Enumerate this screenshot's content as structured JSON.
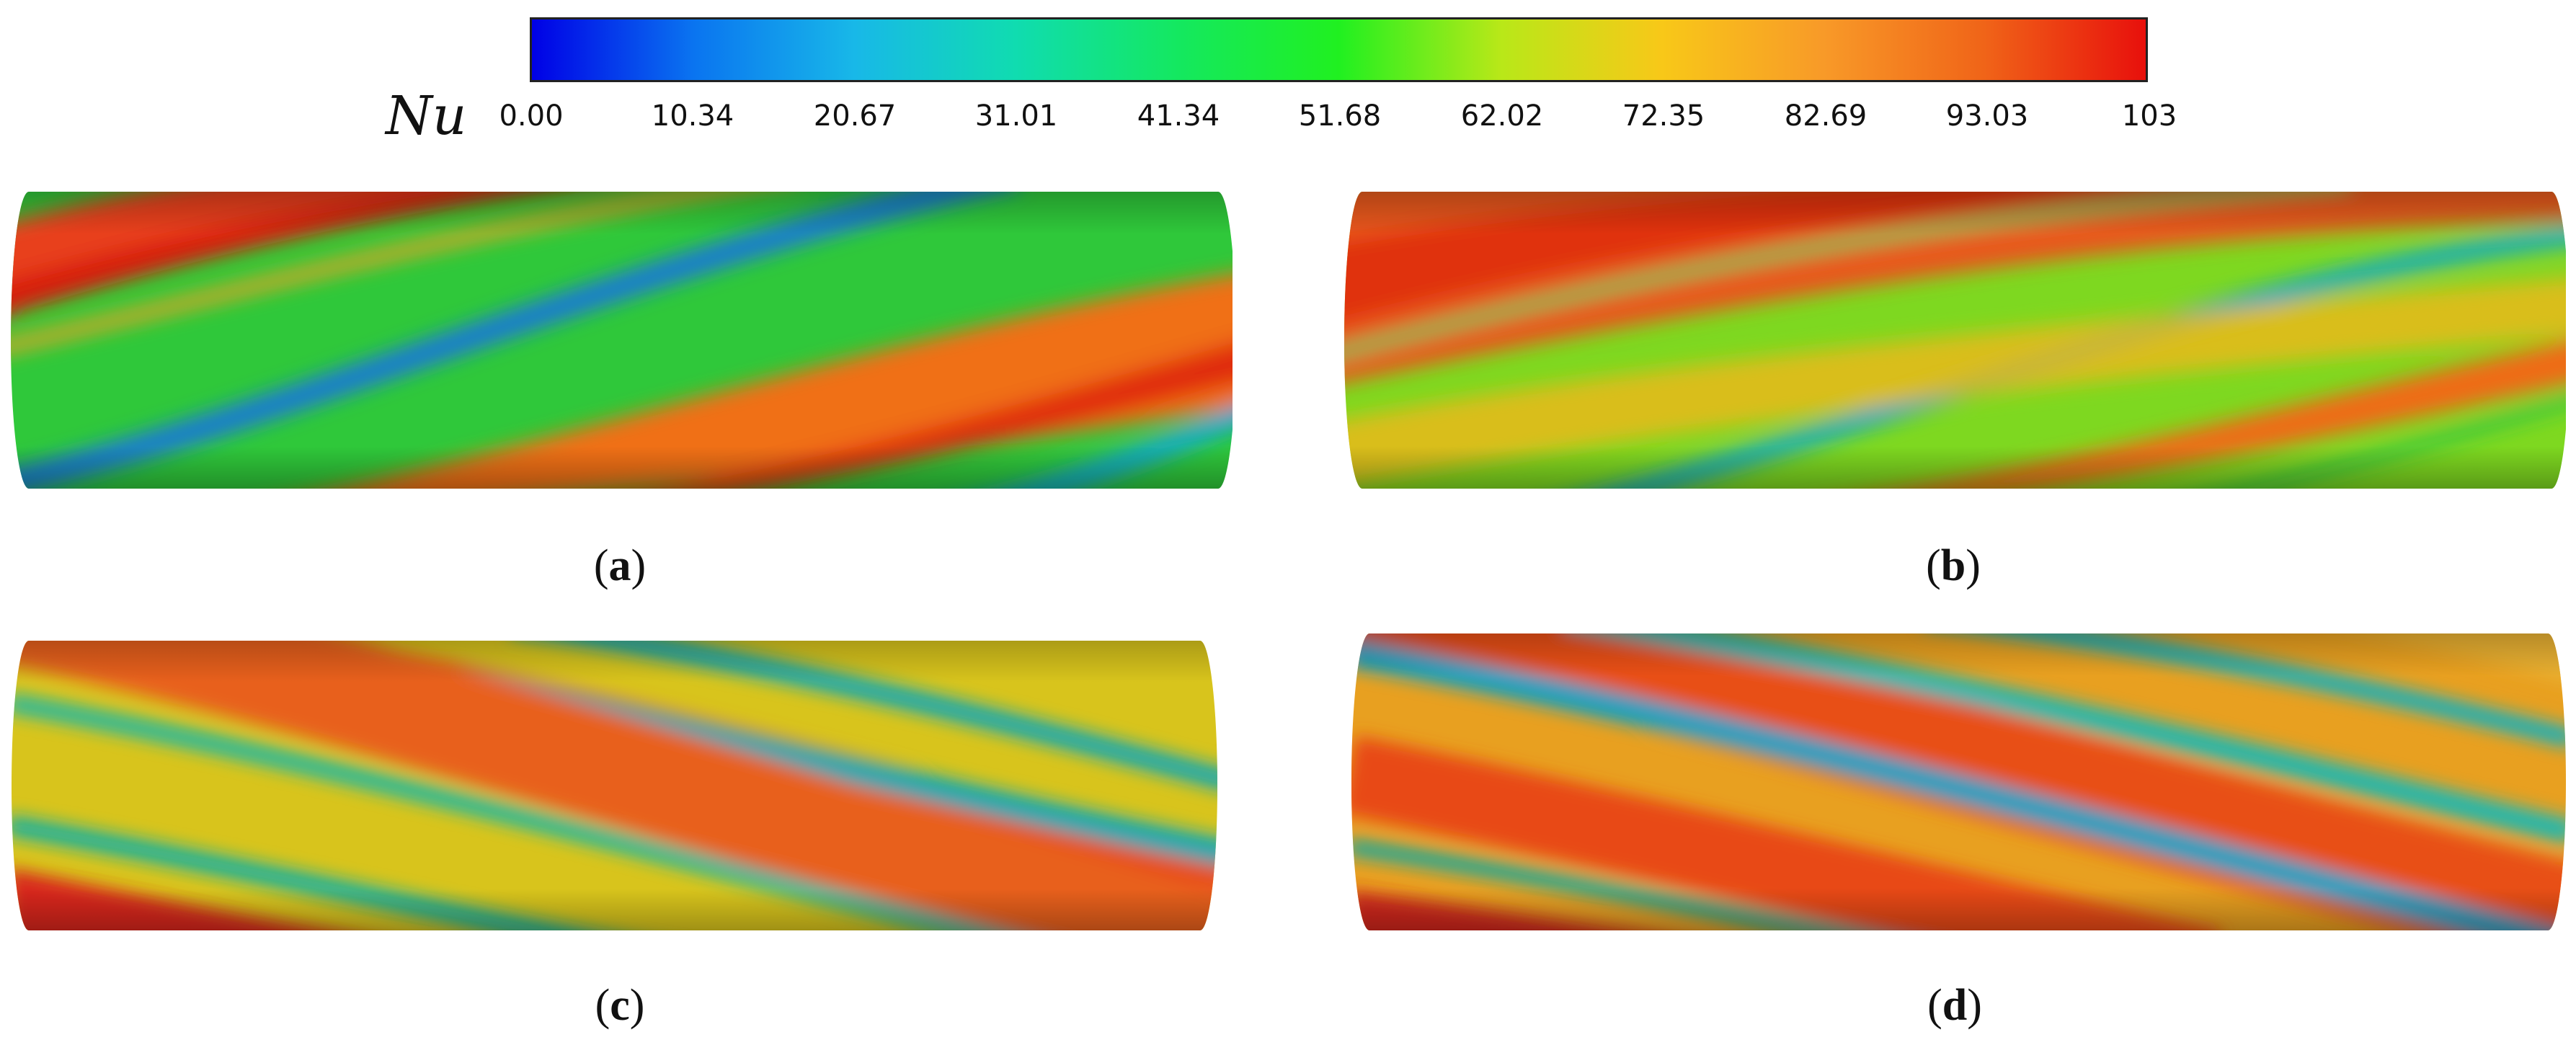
{
  "colorbar": {
    "variable": "Nu",
    "ticks": [
      "0.00",
      "10.34",
      "20.67",
      "31.01",
      "41.34",
      "51.68",
      "62.02",
      "72.35",
      "82.69",
      "93.03",
      "103"
    ],
    "colors": [
      "#0000e6",
      "#0a74f0",
      "#18b8e8",
      "#10dcb0",
      "#14e860",
      "#20f020",
      "#b8e818",
      "#f8c818",
      "#f89a28",
      "#f06418",
      "#e8100c"
    ]
  },
  "panels": [
    {
      "id": "a",
      "caption_open": "(",
      "caption_letter": "a",
      "caption_close": ")"
    },
    {
      "id": "b",
      "caption_open": "(",
      "caption_letter": "b",
      "caption_close": ")"
    },
    {
      "id": "c",
      "caption_open": "(",
      "caption_letter": "c",
      "caption_close": ")"
    },
    {
      "id": "d",
      "caption_open": "(",
      "caption_letter": "d",
      "caption_close": ")"
    }
  ]
}
